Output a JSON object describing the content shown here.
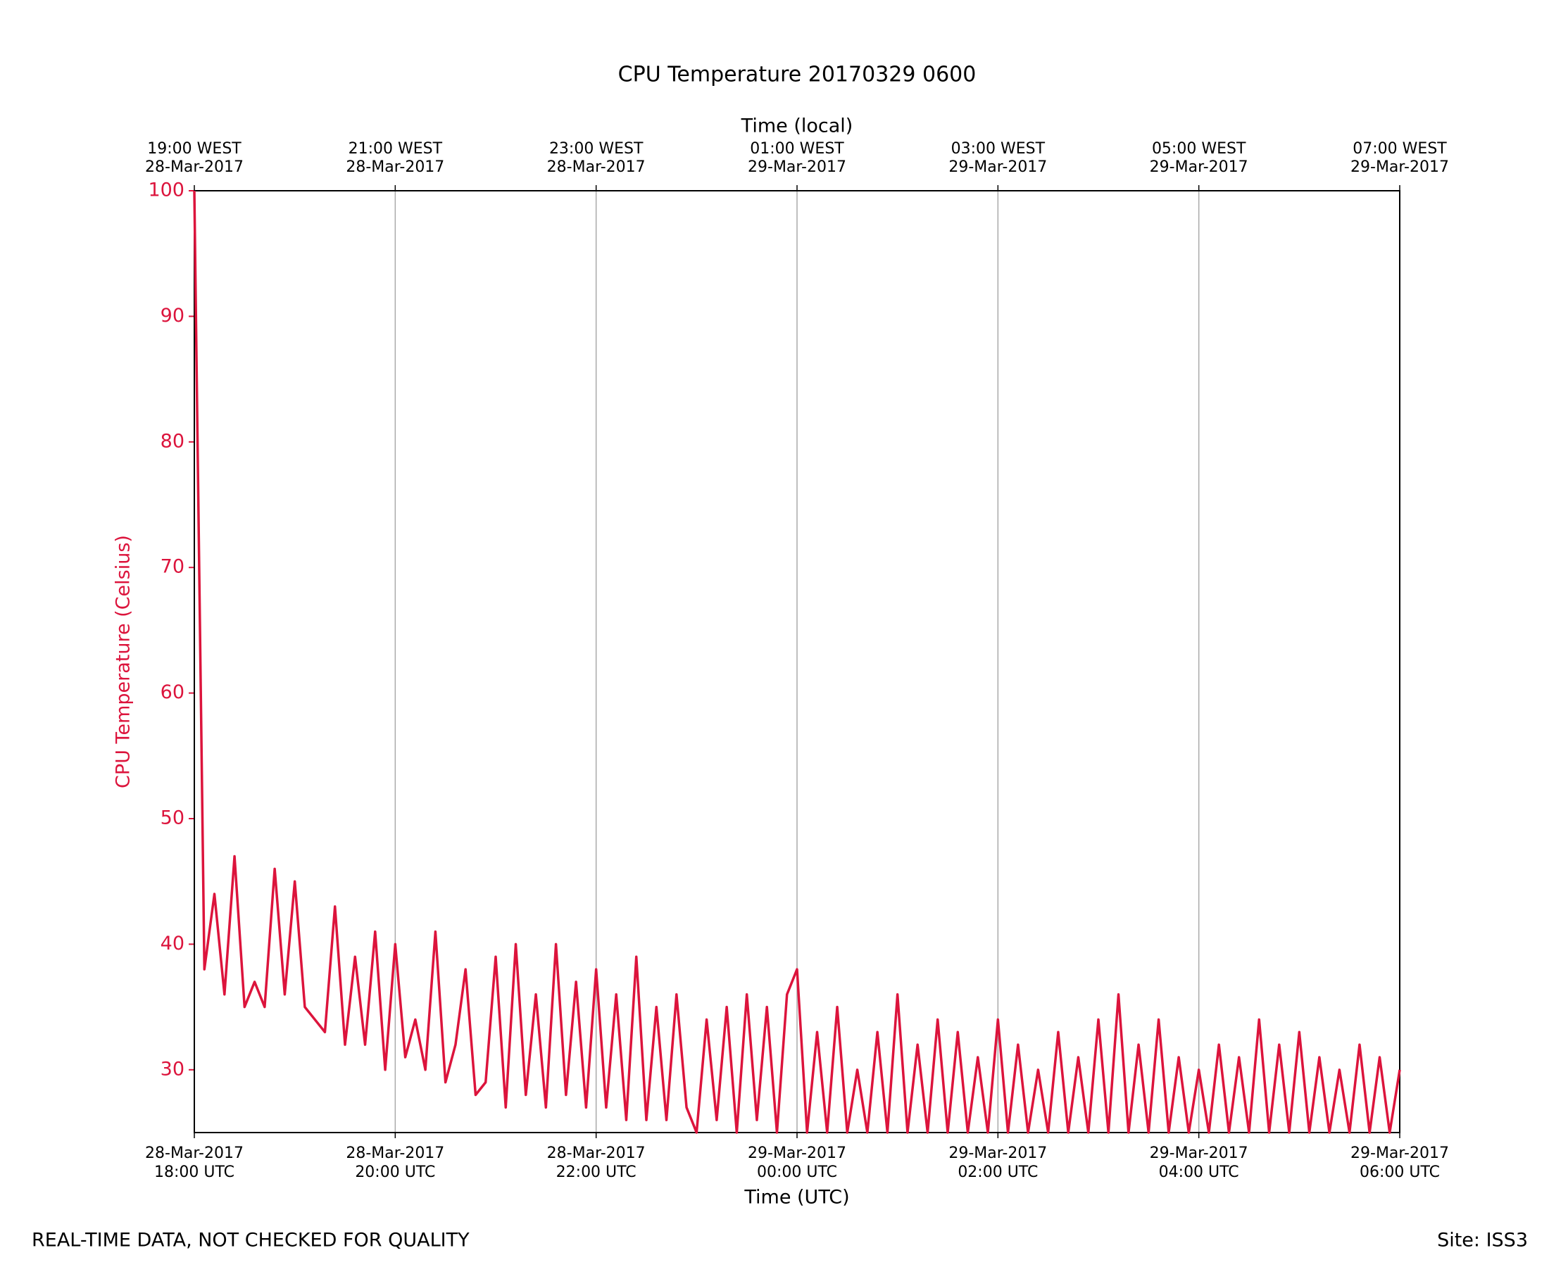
{
  "chart_data": {
    "type": "line",
    "title": "CPU Temperature 20170329 0600",
    "x_label": "Time (UTC)",
    "x2_label": "Time (local)",
    "y_label": "CPU Temperature (Celsius)",
    "footer_left": "REAL-TIME DATA, NOT CHECKED FOR QUALITY",
    "footer_right": "Site: ISS3",
    "xlim": [
      "2017-03-28 18:00",
      "2017-03-29 06:00"
    ],
    "ylim": [
      25,
      100
    ],
    "yticks": [
      30,
      40,
      50,
      60,
      70,
      80,
      90,
      100
    ],
    "xticks": [
      {
        "value": "2017-03-28 18:00",
        "label": [
          "28-Mar-2017",
          "18:00 UTC"
        ]
      },
      {
        "value": "2017-03-28 20:00",
        "label": [
          "28-Mar-2017",
          "20:00 UTC"
        ]
      },
      {
        "value": "2017-03-28 22:00",
        "label": [
          "28-Mar-2017",
          "22:00 UTC"
        ]
      },
      {
        "value": "2017-03-29 00:00",
        "label": [
          "29-Mar-2017",
          "00:00 UTC"
        ]
      },
      {
        "value": "2017-03-29 02:00",
        "label": [
          "29-Mar-2017",
          "02:00 UTC"
        ]
      },
      {
        "value": "2017-03-29 04:00",
        "label": [
          "29-Mar-2017",
          "04:00 UTC"
        ]
      },
      {
        "value": "2017-03-29 06:00",
        "label": [
          "29-Mar-2017",
          "06:00 UTC"
        ]
      }
    ],
    "x2ticks": [
      {
        "value": "2017-03-28 18:00",
        "label": [
          "19:00 WEST",
          "28-Mar-2017"
        ]
      },
      {
        "value": "2017-03-28 20:00",
        "label": [
          "21:00 WEST",
          "28-Mar-2017"
        ]
      },
      {
        "value": "2017-03-28 22:00",
        "label": [
          "23:00 WEST",
          "28-Mar-2017"
        ]
      },
      {
        "value": "2017-03-29 00:00",
        "label": [
          "01:00 WEST",
          "29-Mar-2017"
        ]
      },
      {
        "value": "2017-03-29 02:00",
        "label": [
          "03:00 WEST",
          "29-Mar-2017"
        ]
      },
      {
        "value": "2017-03-29 04:00",
        "label": [
          "05:00 WEST",
          "29-Mar-2017"
        ]
      },
      {
        "value": "2017-03-29 06:00",
        "label": [
          "07:00 WEST",
          "29-Mar-2017"
        ]
      }
    ],
    "grid": true,
    "color": "#dc143c",
    "x": [
      "2017-03-28 18:00",
      "2017-03-28 18:06",
      "2017-03-28 18:12",
      "2017-03-28 18:18",
      "2017-03-28 18:24",
      "2017-03-28 18:30",
      "2017-03-28 18:36",
      "2017-03-28 18:42",
      "2017-03-28 18:48",
      "2017-03-28 18:54",
      "2017-03-28 19:00",
      "2017-03-28 19:06",
      "2017-03-28 19:12",
      "2017-03-28 19:18",
      "2017-03-28 19:24",
      "2017-03-28 19:30",
      "2017-03-28 19:36",
      "2017-03-28 19:42",
      "2017-03-28 19:48",
      "2017-03-28 19:54",
      "2017-03-28 20:00",
      "2017-03-28 20:06",
      "2017-03-28 20:12",
      "2017-03-28 20:18",
      "2017-03-28 20:24",
      "2017-03-28 20:30",
      "2017-03-28 20:36",
      "2017-03-28 20:42",
      "2017-03-28 20:48",
      "2017-03-28 20:54",
      "2017-03-28 21:00",
      "2017-03-28 21:06",
      "2017-03-28 21:12",
      "2017-03-28 21:18",
      "2017-03-28 21:24",
      "2017-03-28 21:30",
      "2017-03-28 21:36",
      "2017-03-28 21:42",
      "2017-03-28 21:48",
      "2017-03-28 21:54",
      "2017-03-28 22:00",
      "2017-03-28 22:06",
      "2017-03-28 22:12",
      "2017-03-28 22:18",
      "2017-03-28 22:24",
      "2017-03-28 22:30",
      "2017-03-28 22:36",
      "2017-03-28 22:42",
      "2017-03-28 22:48",
      "2017-03-28 22:54",
      "2017-03-28 23:00",
      "2017-03-28 23:06",
      "2017-03-28 23:12",
      "2017-03-28 23:18",
      "2017-03-28 23:24",
      "2017-03-28 23:30",
      "2017-03-28 23:36",
      "2017-03-28 23:42",
      "2017-03-28 23:48",
      "2017-03-28 23:54",
      "2017-03-29 00:00",
      "2017-03-29 00:06",
      "2017-03-29 00:12",
      "2017-03-29 00:18",
      "2017-03-29 00:24",
      "2017-03-29 00:30",
      "2017-03-29 00:36",
      "2017-03-29 00:42",
      "2017-03-29 00:48",
      "2017-03-29 00:54",
      "2017-03-29 01:00",
      "2017-03-29 01:06",
      "2017-03-29 01:12",
      "2017-03-29 01:18",
      "2017-03-29 01:24",
      "2017-03-29 01:30",
      "2017-03-29 01:36",
      "2017-03-29 01:42",
      "2017-03-29 01:48",
      "2017-03-29 01:54",
      "2017-03-29 02:00",
      "2017-03-29 02:06",
      "2017-03-29 02:12",
      "2017-03-29 02:18",
      "2017-03-29 02:24",
      "2017-03-29 02:30",
      "2017-03-29 02:36",
      "2017-03-29 02:42",
      "2017-03-29 02:48",
      "2017-03-29 02:54",
      "2017-03-29 03:00",
      "2017-03-29 03:06",
      "2017-03-29 03:12",
      "2017-03-29 03:18",
      "2017-03-29 03:24",
      "2017-03-29 03:30",
      "2017-03-29 03:36",
      "2017-03-29 03:42",
      "2017-03-29 03:48",
      "2017-03-29 03:54",
      "2017-03-29 04:00",
      "2017-03-29 04:06",
      "2017-03-29 04:12",
      "2017-03-29 04:18",
      "2017-03-29 04:24",
      "2017-03-29 04:30",
      "2017-03-29 04:36",
      "2017-03-29 04:42",
      "2017-03-29 04:48",
      "2017-03-29 04:54",
      "2017-03-29 05:00",
      "2017-03-29 05:06",
      "2017-03-29 05:12",
      "2017-03-29 05:18",
      "2017-03-29 05:24",
      "2017-03-29 05:30",
      "2017-03-29 05:36",
      "2017-03-29 05:42",
      "2017-03-29 05:48",
      "2017-03-29 05:54",
      "2017-03-29 06:00"
    ],
    "values": [
      100,
      38,
      44,
      36,
      47,
      35,
      37,
      35,
      46,
      36,
      45,
      35,
      34,
      33,
      43,
      32,
      39,
      32,
      41,
      30,
      40,
      31,
      34,
      30,
      41,
      29,
      32,
      38,
      28,
      29,
      39,
      27,
      40,
      28,
      36,
      27,
      40,
      28,
      37,
      27,
      38,
      27,
      36,
      26,
      39,
      26,
      35,
      26,
      36,
      27,
      25,
      34,
      26,
      35,
      25,
      36,
      26,
      35,
      25,
      36,
      38,
      25,
      33,
      25,
      35,
      25,
      30,
      25,
      33,
      25,
      36,
      25,
      32,
      25,
      34,
      25,
      33,
      25,
      31,
      25,
      34,
      25,
      32,
      25,
      30,
      25,
      33,
      25,
      31,
      25,
      34,
      25,
      36,
      25,
      32,
      25,
      34,
      25,
      31,
      25,
      30,
      25,
      32,
      25,
      31,
      25,
      34,
      25,
      32,
      25,
      33,
      25,
      31,
      25,
      30,
      25,
      32,
      25,
      31,
      25,
      30
    ]
  }
}
